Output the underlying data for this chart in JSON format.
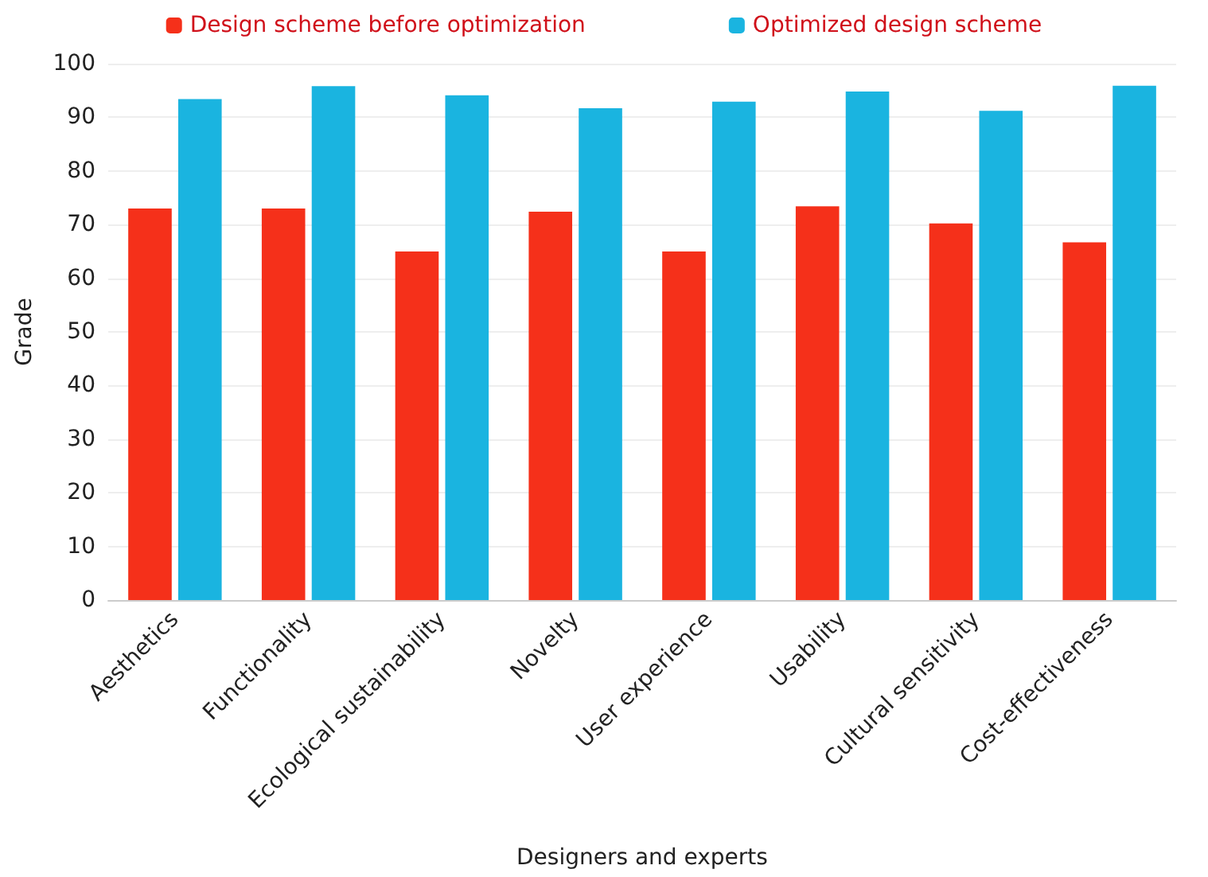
{
  "chart_data": {
    "type": "bar",
    "xlabel": "Designers and experts",
    "ylabel": "Grade",
    "categories": [
      "Aesthetics",
      "Functionality",
      "Ecological sustainability",
      "Novelty",
      "User experience",
      "Usability",
      "Cultural sensitivity",
      "Cost-effectiveness"
    ],
    "series": [
      {
        "name": "Design scheme before optimization",
        "color": "#f5301a",
        "values": [
          73,
          73,
          65,
          72.4,
          65,
          73.4,
          70.2,
          66.7
        ]
      },
      {
        "name": "Optimized design scheme",
        "color": "#1ab4e0",
        "values": [
          93.4,
          95.8,
          94.1,
          91.7,
          92.9,
          94.8,
          91.2,
          95.9
        ]
      }
    ],
    "ylim": [
      0,
      100
    ],
    "yticks": [
      0,
      10,
      20,
      30,
      40,
      50,
      60,
      70,
      80,
      90,
      100
    ],
    "grid": "y",
    "legend": "top"
  }
}
